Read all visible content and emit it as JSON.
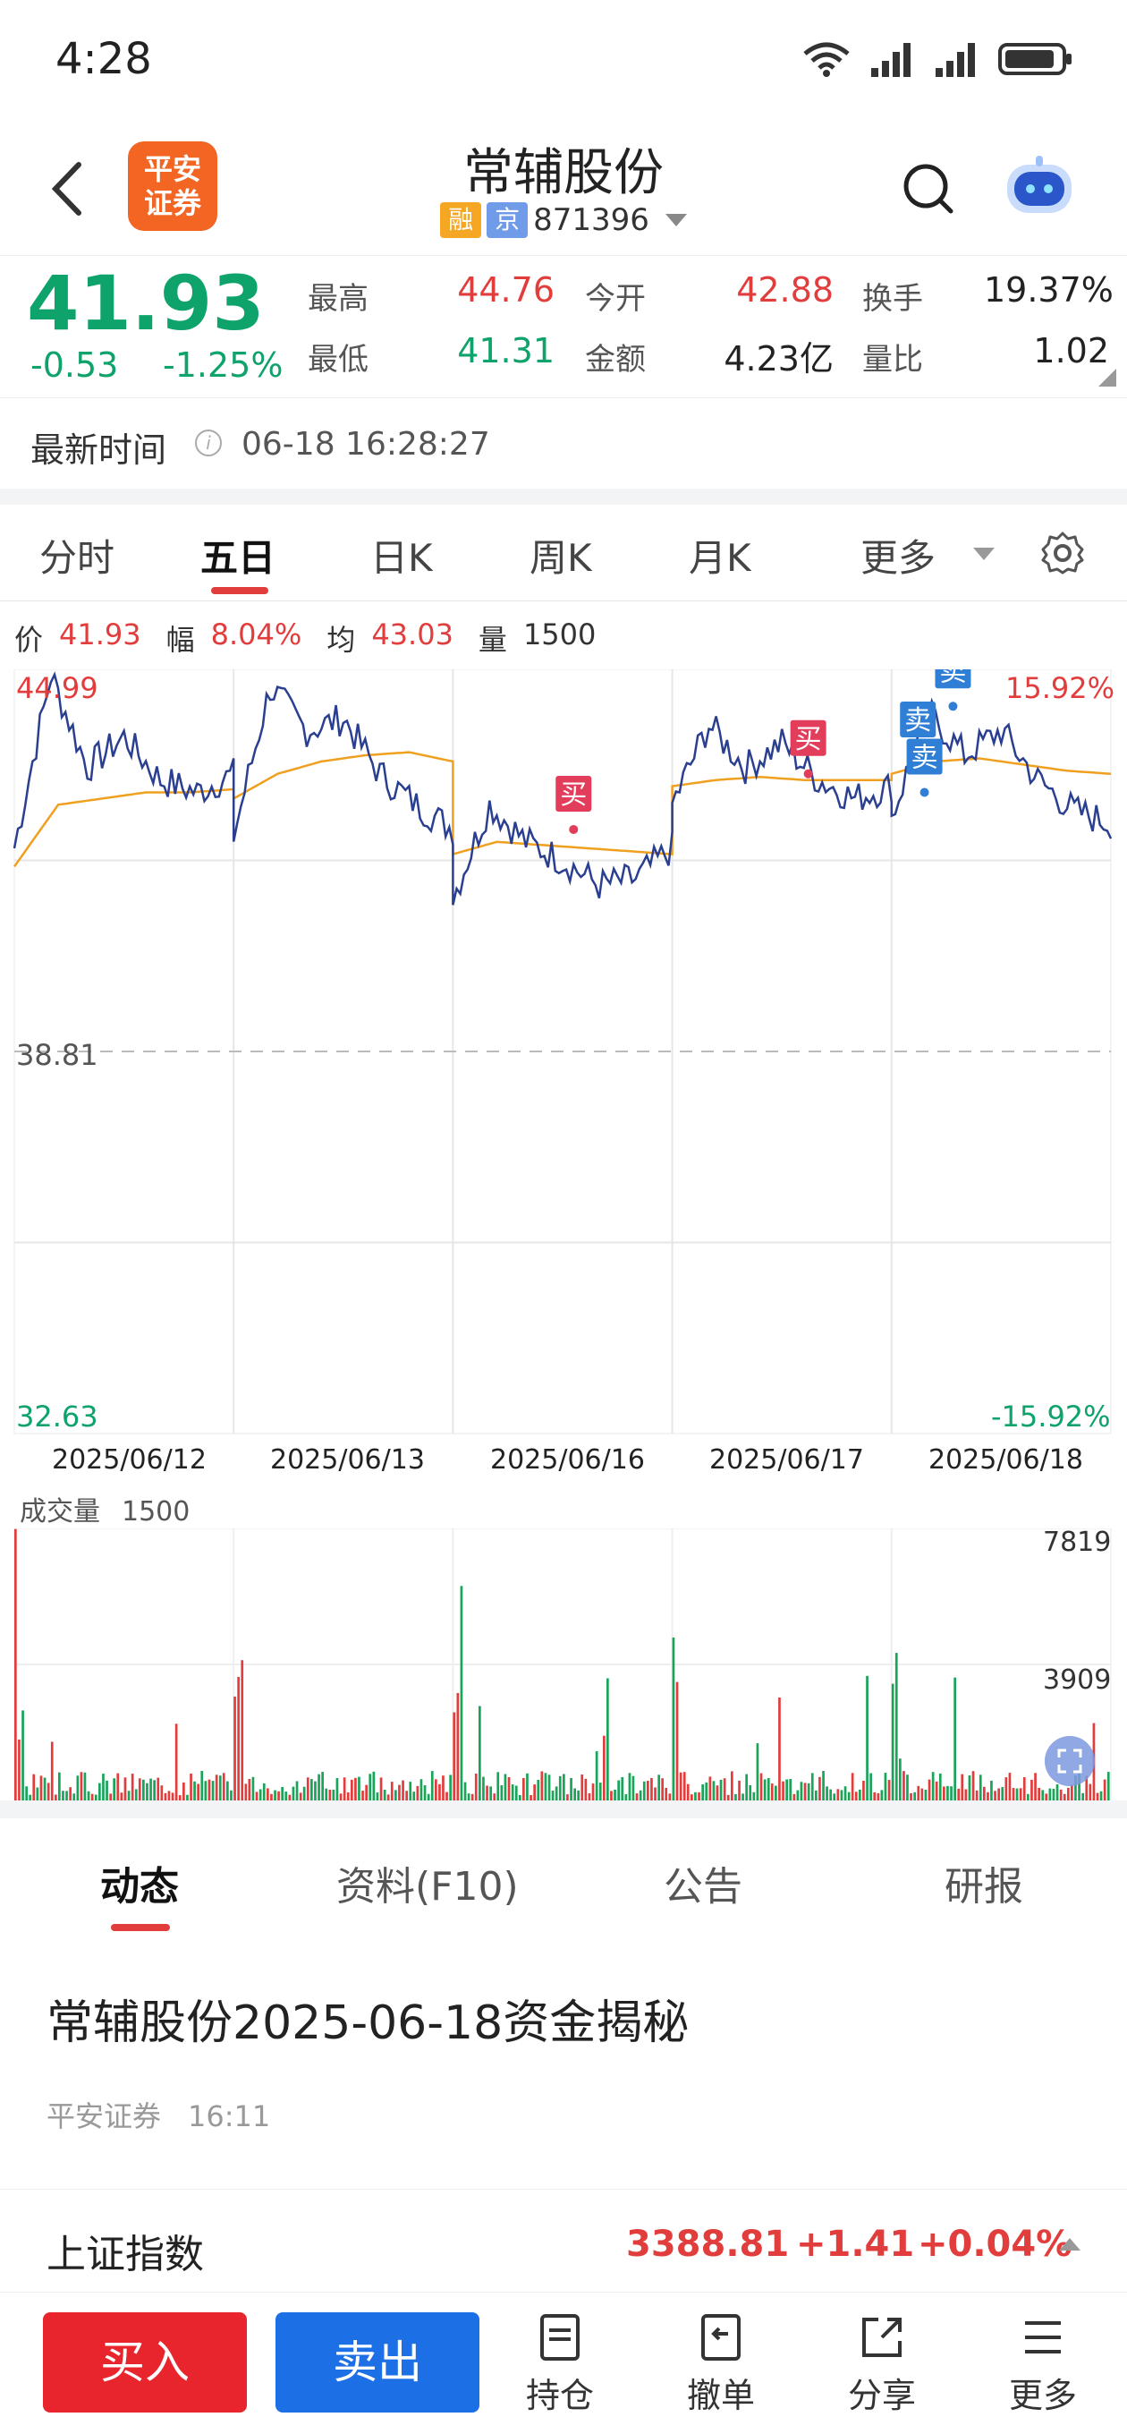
{
  "status": {
    "time": "4:28"
  },
  "header": {
    "title": "常辅股份",
    "tag_rong": "融",
    "tag_jing": "京",
    "code": "871396",
    "logo_line1": "平安",
    "logo_line2": "证券"
  },
  "quote": {
    "price": "41.93",
    "change": "-0.53",
    "change_pct": "-1.25%",
    "high_label": "最高",
    "high": "44.76",
    "low_label": "最低",
    "low": "41.31",
    "open_label": "今开",
    "open": "42.88",
    "amount_label": "金额",
    "amount": "4.23亿",
    "turnover_label": "换手",
    "turnover": "19.37%",
    "vol_ratio_label": "量比",
    "vol_ratio": "1.02"
  },
  "update": {
    "label": "最新时间",
    "time": "06-18 16:28:27"
  },
  "tabs": [
    "分时",
    "五日",
    "日K",
    "周K",
    "月K",
    "更多"
  ],
  "legend": {
    "price_label": "价",
    "price": "41.93",
    "amp_label": "幅",
    "amp": "8.04%",
    "avg_label": "均",
    "avg": "43.03",
    "vol_label": "量",
    "vol": "1500"
  },
  "chart_data": {
    "type": "line",
    "x": [
      "2025/06/12",
      "2025/06/13",
      "2025/06/16",
      "2025/06/17",
      "2025/06/18"
    ],
    "y_top": "44.99",
    "y_mid": "38.81",
    "y_bottom": "32.63",
    "pct_top": "15.92%",
    "pct_bottom": "-15.92%",
    "ylim": [
      32.63,
      44.99
    ],
    "markers": [
      {
        "label": "买",
        "day": 2,
        "value": 42.4
      },
      {
        "label": "买",
        "day": 3,
        "value": 43.3
      },
      {
        "label": "卖",
        "day": 4,
        "value": 43.6
      },
      {
        "label": "卖",
        "day": 4,
        "value": 43.9
      },
      {
        "label": "卖",
        "day": 4,
        "value": 43.0
      }
    ]
  },
  "volume": {
    "title": "成交量",
    "value": "1500",
    "max_label": "7819",
    "mid_label": "3909",
    "ylim": [
      0,
      7819
    ]
  },
  "news_tabs": [
    "动态",
    "资料(F10)",
    "公告",
    "研报"
  ],
  "news": {
    "title": "常辅股份2025-06-18资金揭秘",
    "source": "平安证券",
    "time": "16:11"
  },
  "index": {
    "name": "上证指数",
    "value": "3388.81",
    "change": "+1.41",
    "pct": "+0.04%"
  },
  "bottom": {
    "buy": "买入",
    "sell": "卖出",
    "hold": "持仓",
    "cancel": "撤单",
    "share": "分享",
    "more": "更多"
  }
}
